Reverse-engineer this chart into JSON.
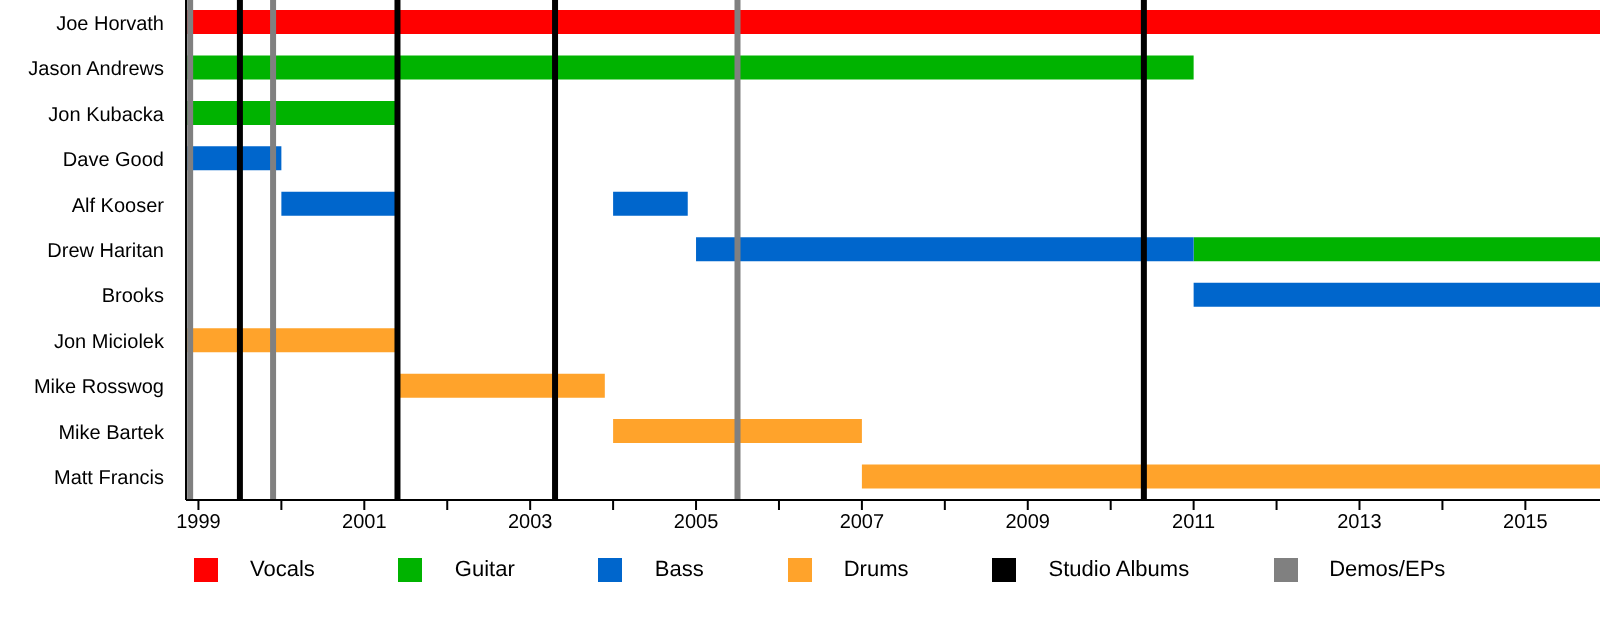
{
  "chart_data": {
    "type": "bar",
    "orientation": "horizontal",
    "categories": [
      "Joe Horvath",
      "Jason Andrews",
      "Jon Kubacka",
      "Dave Good",
      "Alf Kooser",
      "Drew Haritan",
      "Brooks",
      "Jon Miciolek",
      "Mike Rosswog",
      "Mike Bartek",
      "Matt Francis"
    ],
    "series": [
      {
        "name": "Vocals",
        "color": "#ff0000",
        "base": [
          1998.85,
          null,
          null,
          null,
          null,
          null,
          null,
          null,
          null,
          null,
          null
        ],
        "values": [
          17.05,
          null,
          null,
          null,
          null,
          null,
          null,
          null,
          null,
          null,
          null
        ]
      },
      {
        "name": "Guitar",
        "color": "#00b300",
        "base": [
          null,
          1998.85,
          1998.85,
          null,
          null,
          2011.0,
          null,
          null,
          null,
          null,
          null
        ],
        "values": [
          null,
          12.15,
          2.55,
          null,
          null,
          4.9,
          null,
          null,
          null,
          null,
          null
        ]
      },
      {
        "name": "Bass",
        "color": "#0066cc",
        "base": [
          null,
          null,
          null,
          1998.85,
          2000.0,
          2005.0,
          2011.0,
          null,
          null,
          null,
          null
        ],
        "values": [
          null,
          null,
          null,
          1.15,
          1.4,
          6.0,
          4.9,
          null,
          null,
          null,
          null
        ]
      },
      {
        "color": "#0066cc",
        "base": [
          null,
          null,
          null,
          null,
          2004.0,
          null,
          null,
          null,
          null,
          null,
          null
        ],
        "values": [
          null,
          null,
          null,
          null,
          0.9,
          null,
          null,
          null,
          null,
          null,
          null
        ]
      },
      {
        "name": "Drums",
        "color": "#ffa32b",
        "base": [
          null,
          null,
          null,
          null,
          null,
          null,
          null,
          1998.85,
          2001.4,
          2004.0,
          2007.0
        ],
        "values": [
          null,
          null,
          null,
          null,
          null,
          null,
          null,
          2.55,
          2.5,
          3.0,
          8.9
        ]
      }
    ],
    "xlim": [
      1998.85,
      2015.9
    ],
    "xticks": [
      1999,
      {
        "value": 2000,
        "label": null
      },
      2001,
      {
        "value": 2002,
        "label": null
      },
      2003,
      {
        "value": 2004,
        "label": null
      },
      2005,
      {
        "value": 2006,
        "label": null
      },
      2007,
      {
        "value": 2008,
        "label": null
      },
      2009,
      {
        "value": 2010,
        "label": null
      },
      2011,
      {
        "value": 2012,
        "label": null
      },
      2013,
      {
        "value": 2014,
        "label": null
      },
      2015
    ],
    "ref_lines": [
      {
        "axis": "x",
        "value": 1999.5,
        "label": "Studio Albums",
        "color": "#000000"
      },
      {
        "axis": "x",
        "value": 1998.9,
        "label": "Demos/EPs",
        "color": "#808080"
      },
      {
        "axis": "x",
        "value": 1999.9,
        "color": "#808080"
      },
      {
        "axis": "x",
        "value": 2001.4,
        "color": "#000000"
      },
      {
        "axis": "x",
        "value": 2003.3,
        "color": "#000000"
      },
      {
        "axis": "x",
        "value": 2005.5,
        "color": "#808080"
      },
      {
        "axis": "x",
        "value": 2010.4,
        "color": "#000000"
      }
    ],
    "grid": false,
    "legend": "bottom"
  }
}
